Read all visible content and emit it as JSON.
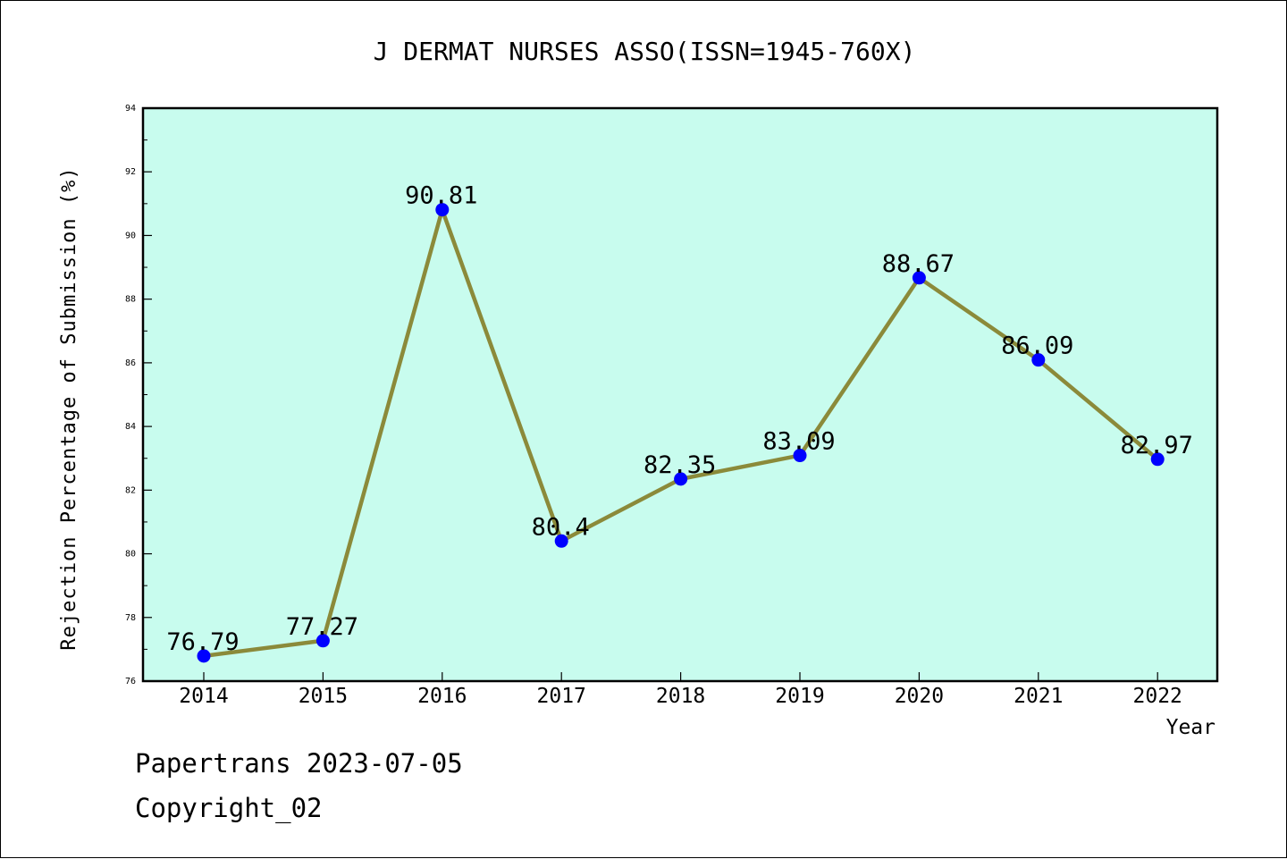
{
  "chart_data": {
    "type": "line",
    "title": "J DERMAT NURSES ASSO(ISSN=1945-760X)",
    "xlabel": "Year",
    "ylabel": "Rejection Percentage of Submission (%)",
    "categories": [
      "2014",
      "2015",
      "2016",
      "2017",
      "2018",
      "2019",
      "2020",
      "2021",
      "2022"
    ],
    "values": [
      76.79,
      77.27,
      90.81,
      80.4,
      82.35,
      83.09,
      88.67,
      86.09,
      82.97
    ],
    "data_labels": [
      "76.79",
      "77.27",
      "90.81",
      "80.4",
      "82.35",
      "83.09",
      "88.67",
      "86.09",
      "82.97"
    ],
    "ylim": [
      76,
      94
    ],
    "yticks": [
      "76",
      "78",
      "80",
      "82",
      "84",
      "86",
      "88",
      "90",
      "92",
      "94"
    ],
    "grid": false,
    "colors": {
      "plot_background": "#c8fcee",
      "line": "#8b8a3a",
      "marker": "#0000ff"
    }
  },
  "footer": {
    "line1": "Papertrans 2023-07-05",
    "line2": "Copyright_02"
  }
}
